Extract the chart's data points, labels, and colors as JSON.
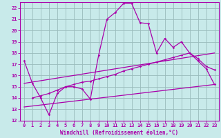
{
  "xlabel": "Windchill (Refroidissement éolien,°C)",
  "xlim": [
    -0.5,
    23.5
  ],
  "ylim": [
    12,
    22.5
  ],
  "xticks": [
    0,
    1,
    2,
    3,
    4,
    5,
    6,
    7,
    8,
    9,
    10,
    11,
    12,
    13,
    14,
    15,
    16,
    17,
    18,
    19,
    20,
    21,
    22,
    23
  ],
  "yticks": [
    12,
    13,
    14,
    15,
    16,
    17,
    18,
    19,
    20,
    21,
    22
  ],
  "background_color": "#c8eaea",
  "line_color": "#aa00aa",
  "grid_color": "#99bbbb",
  "line1_x": [
    0,
    1,
    2,
    3,
    4,
    5,
    6,
    7,
    8,
    9,
    10,
    11,
    12,
    13,
    14,
    15,
    16,
    17,
    18,
    19,
    20,
    21,
    22,
    23
  ],
  "line1_y": [
    17.3,
    15.3,
    14.0,
    12.5,
    14.4,
    15.0,
    15.0,
    14.8,
    13.9,
    17.8,
    21.0,
    21.6,
    22.4,
    22.4,
    20.7,
    20.6,
    18.0,
    19.3,
    18.5,
    19.0,
    18.0,
    17.3,
    16.6,
    15.2
  ],
  "line2_x": [
    1,
    2,
    3,
    4,
    5,
    6,
    7,
    8,
    9,
    10,
    11,
    12,
    13,
    14,
    15,
    16,
    17,
    18,
    19,
    20,
    21,
    22,
    23
  ],
  "line2_y": [
    14.0,
    14.2,
    14.4,
    14.7,
    15.0,
    15.2,
    15.4,
    15.5,
    15.7,
    15.9,
    16.1,
    16.4,
    16.6,
    16.8,
    17.0,
    17.2,
    17.4,
    17.6,
    17.8,
    18.0,
    17.5,
    16.8,
    16.5
  ],
  "line3_x": [
    0,
    23
  ],
  "line3_y": [
    13.2,
    15.2
  ],
  "line4_x": [
    0,
    23
  ],
  "line4_y": [
    15.3,
    18.0
  ]
}
